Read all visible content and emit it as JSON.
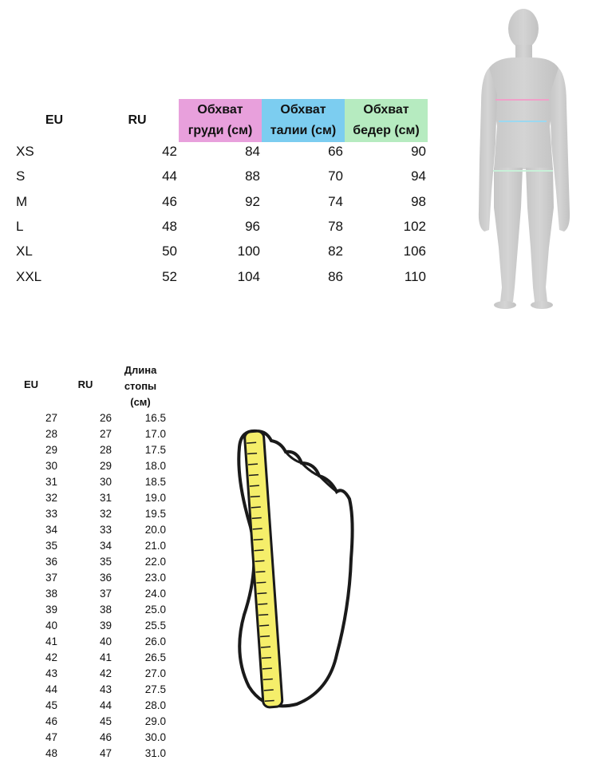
{
  "clothing_table": {
    "headers": {
      "eu": "EU",
      "ru": "RU",
      "chest": [
        "Обхват",
        "груди (см)"
      ],
      "waist": [
        "Обхват",
        "талии (см)"
      ],
      "hips": [
        "Обхват",
        "бедер (см)"
      ]
    },
    "header_colors": {
      "chest": "#e8a0dc",
      "waist": "#7ccdf0",
      "hips": "#b6ebc0"
    },
    "rows": [
      {
        "size": "XS",
        "ru": "42",
        "chest": "84",
        "waist": "66",
        "hips": "90"
      },
      {
        "size": "S",
        "ru": "44",
        "chest": "88",
        "waist": "70",
        "hips": "94"
      },
      {
        "size": "M",
        "ru": "46",
        "chest": "92",
        "waist": "74",
        "hips": "98"
      },
      {
        "size": "L",
        "ru": "48",
        "chest": "96",
        "waist": "78",
        "hips": "102"
      },
      {
        "size": "XL",
        "ru": "50",
        "chest": "100",
        "waist": "82",
        "hips": "106"
      },
      {
        "size": "XXL",
        "ru": "52",
        "chest": "104",
        "waist": "86",
        "hips": "110"
      }
    ]
  },
  "body_figure": {
    "icon": "human-silhouette-icon",
    "line_colors": {
      "chest": "#f0a0c8",
      "waist": "#9cd8f0",
      "hips": "#c8f0d8"
    }
  },
  "shoe_table": {
    "headers": {
      "eu": "EU",
      "ru": "RU",
      "length": [
        "Длина",
        "стопы",
        "(см)"
      ]
    },
    "rows": [
      {
        "eu": "27",
        "ru": "26",
        "length": "16.5"
      },
      {
        "eu": "28",
        "ru": "27",
        "length": "17.0"
      },
      {
        "eu": "29",
        "ru": "28",
        "length": "17.5"
      },
      {
        "eu": "30",
        "ru": "29",
        "length": "18.0"
      },
      {
        "eu": "31",
        "ru": "30",
        "length": "18.5"
      },
      {
        "eu": "32",
        "ru": "31",
        "length": "19.0"
      },
      {
        "eu": "33",
        "ru": "32",
        "length": "19.5"
      },
      {
        "eu": "34",
        "ru": "33",
        "length": "20.0"
      },
      {
        "eu": "35",
        "ru": "34",
        "length": "21.0"
      },
      {
        "eu": "36",
        "ru": "35",
        "length": "22.0"
      },
      {
        "eu": "37",
        "ru": "36",
        "length": "23.0"
      },
      {
        "eu": "38",
        "ru": "37",
        "length": "24.0"
      },
      {
        "eu": "39",
        "ru": "38",
        "length": "25.0"
      },
      {
        "eu": "40",
        "ru": "39",
        "length": "25.5"
      },
      {
        "eu": "41",
        "ru": "40",
        "length": "26.0"
      },
      {
        "eu": "42",
        "ru": "41",
        "length": "26.5"
      },
      {
        "eu": "43",
        "ru": "42",
        "length": "27.0"
      },
      {
        "eu": "44",
        "ru": "43",
        "length": "27.5"
      },
      {
        "eu": "45",
        "ru": "44",
        "length": "28.0"
      },
      {
        "eu": "46",
        "ru": "45",
        "length": "29.0"
      },
      {
        "eu": "47",
        "ru": "46",
        "length": "30.0"
      },
      {
        "eu": "48",
        "ru": "47",
        "length": "31.0"
      }
    ]
  },
  "foot_figure": {
    "icon": "foot-ruler-icon",
    "ruler_color": "#f5ee6a"
  }
}
